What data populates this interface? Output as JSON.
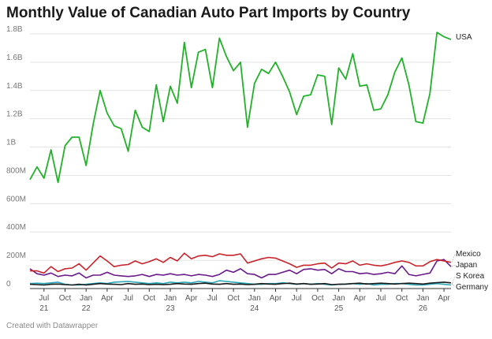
{
  "page": {
    "title": "Monthly Value of Canadian Auto Part Imports by Country",
    "footer": "Created with Datawrapper"
  },
  "chart_data": {
    "type": "line",
    "title": "Monthly Value of Canadian Auto Part Imports by Country",
    "xlabel": "",
    "ylabel": "",
    "ylim": [
      0,
      1800000000
    ],
    "grid": true,
    "legend": "direct labels at line ends (right)",
    "y_ticks": [
      {
        "value": 0,
        "label": "0"
      },
      {
        "value": 200000000,
        "label": "200M"
      },
      {
        "value": 400000000,
        "label": "400M"
      },
      {
        "value": 600000000,
        "label": "600M"
      },
      {
        "value": 800000000,
        "label": "800M"
      },
      {
        "value": 1000000000,
        "label": "1B"
      },
      {
        "value": 1200000000,
        "label": "1.2B"
      },
      {
        "value": 1400000000,
        "label": "1.4B"
      },
      {
        "value": 1600000000,
        "label": "1.6B"
      },
      {
        "value": 1800000000,
        "label": "1.8B"
      }
    ],
    "x": [
      "2021-05",
      "2021-06",
      "2021-07",
      "2021-08",
      "2021-09",
      "2021-10",
      "2021-11",
      "2021-12",
      "2022-01",
      "2022-02",
      "2022-03",
      "2022-04",
      "2022-05",
      "2022-06",
      "2022-07",
      "2022-08",
      "2022-09",
      "2022-10",
      "2022-11",
      "2022-12",
      "2023-01",
      "2023-02",
      "2023-03",
      "2023-04",
      "2023-05",
      "2023-06",
      "2023-07",
      "2023-08",
      "2023-09",
      "2023-10",
      "2023-11",
      "2023-12",
      "2024-01",
      "2024-02",
      "2024-03",
      "2024-04",
      "2024-05",
      "2024-06",
      "2024-07",
      "2024-08",
      "2024-09",
      "2024-10",
      "2024-11",
      "2024-12",
      "2025-01",
      "2025-02",
      "2025-03",
      "2025-04",
      "2025-05",
      "2025-06",
      "2025-07",
      "2025-08",
      "2025-09",
      "2025-10",
      "2025-11",
      "2025-12",
      "2026-01",
      "2026-02",
      "2026-03",
      "2026-04",
      "2026-05"
    ],
    "x_ticks": [
      {
        "x": "2021-07",
        "label": "Jul",
        "year": "21"
      },
      {
        "x": "2021-10",
        "label": "Oct",
        "year": ""
      },
      {
        "x": "2022-01",
        "label": "Jan",
        "year": "22"
      },
      {
        "x": "2022-04",
        "label": "Apr",
        "year": ""
      },
      {
        "x": "2022-07",
        "label": "Jul",
        "year": ""
      },
      {
        "x": "2022-10",
        "label": "Oct",
        "year": ""
      },
      {
        "x": "2023-01",
        "label": "Jan",
        "year": "23"
      },
      {
        "x": "2023-04",
        "label": "Apr",
        "year": ""
      },
      {
        "x": "2023-07",
        "label": "Jul",
        "year": ""
      },
      {
        "x": "2023-10",
        "label": "Oct",
        "year": ""
      },
      {
        "x": "2024-01",
        "label": "Jan",
        "year": "24"
      },
      {
        "x": "2024-04",
        "label": "Apr",
        "year": ""
      },
      {
        "x": "2024-07",
        "label": "Jul",
        "year": ""
      },
      {
        "x": "2024-10",
        "label": "Oct",
        "year": ""
      },
      {
        "x": "2025-01",
        "label": "Jan",
        "year": "25"
      },
      {
        "x": "2025-04",
        "label": "Apr",
        "year": ""
      },
      {
        "x": "2025-07",
        "label": "Jul",
        "year": ""
      },
      {
        "x": "2025-10",
        "label": "Oct",
        "year": ""
      },
      {
        "x": "2026-01",
        "label": "Jan",
        "year": "26"
      },
      {
        "x": "2026-04",
        "label": "Apr",
        "year": ""
      }
    ],
    "series": [
      {
        "name": "USA",
        "color": "#22b22a",
        "values": [
          770000000,
          860000000,
          780000000,
          980000000,
          750000000,
          1010000000,
          1070000000,
          1070000000,
          870000000,
          1160000000,
          1400000000,
          1240000000,
          1150000000,
          1130000000,
          970000000,
          1260000000,
          1140000000,
          1110000000,
          1440000000,
          1180000000,
          1430000000,
          1310000000,
          1740000000,
          1420000000,
          1670000000,
          1690000000,
          1420000000,
          1770000000,
          1640000000,
          1540000000,
          1600000000,
          1140000000,
          1450000000,
          1550000000,
          1520000000,
          1600000000,
          1500000000,
          1390000000,
          1230000000,
          1360000000,
          1370000000,
          1510000000,
          1500000000,
          1160000000,
          1560000000,
          1480000000,
          1660000000,
          1430000000,
          1440000000,
          1260000000,
          1270000000,
          1370000000,
          1530000000,
          1630000000,
          1440000000,
          1180000000,
          1170000000,
          1380000000,
          1810000000,
          1780000000,
          1760000000
        ]
      },
      {
        "name": "Mexico",
        "color": "#c9232b",
        "values": [
          125000000,
          125000000,
          110000000,
          155000000,
          120000000,
          140000000,
          145000000,
          175000000,
          130000000,
          180000000,
          230000000,
          195000000,
          155000000,
          165000000,
          170000000,
          195000000,
          175000000,
          190000000,
          210000000,
          185000000,
          220000000,
          195000000,
          250000000,
          210000000,
          230000000,
          235000000,
          225000000,
          245000000,
          235000000,
          235000000,
          245000000,
          180000000,
          195000000,
          210000000,
          220000000,
          215000000,
          195000000,
          175000000,
          150000000,
          165000000,
          165000000,
          175000000,
          180000000,
          145000000,
          180000000,
          175000000,
          195000000,
          165000000,
          175000000,
          165000000,
          160000000,
          170000000,
          185000000,
          195000000,
          185000000,
          160000000,
          160000000,
          190000000,
          205000000,
          195000000,
          185000000
        ]
      },
      {
        "name": "Japan",
        "color": "#6a1a8a",
        "values": [
          140000000,
          105000000,
          95000000,
          110000000,
          85000000,
          95000000,
          90000000,
          110000000,
          75000000,
          95000000,
          95000000,
          115000000,
          95000000,
          90000000,
          85000000,
          90000000,
          100000000,
          85000000,
          100000000,
          95000000,
          105000000,
          95000000,
          100000000,
          90000000,
          100000000,
          95000000,
          85000000,
          100000000,
          130000000,
          115000000,
          140000000,
          105000000,
          100000000,
          75000000,
          100000000,
          100000000,
          115000000,
          130000000,
          105000000,
          135000000,
          140000000,
          130000000,
          135000000,
          105000000,
          140000000,
          120000000,
          120000000,
          105000000,
          110000000,
          100000000,
          105000000,
          115000000,
          105000000,
          160000000,
          100000000,
          90000000,
          100000000,
          110000000,
          195000000,
          205000000,
          155000000
        ]
      },
      {
        "name": "S Korea",
        "color": "#2aa8b8",
        "values": [
          35000000,
          38000000,
          35000000,
          40000000,
          45000000,
          30000000,
          25000000,
          25000000,
          30000000,
          35000000,
          40000000,
          35000000,
          45000000,
          48000000,
          50000000,
          45000000,
          40000000,
          35000000,
          40000000,
          35000000,
          45000000,
          40000000,
          45000000,
          40000000,
          50000000,
          45000000,
          40000000,
          55000000,
          50000000,
          45000000,
          40000000,
          35000000,
          30000000,
          30000000,
          35000000,
          35000000,
          40000000,
          35000000,
          30000000,
          35000000,
          30000000,
          35000000,
          30000000,
          25000000,
          30000000,
          30000000,
          35000000,
          30000000,
          35000000,
          25000000,
          30000000,
          30000000,
          35000000,
          35000000,
          30000000,
          25000000,
          25000000,
          30000000,
          35000000,
          30000000,
          25000000
        ]
      },
      {
        "name": "Germany",
        "color": "#1a1a1a",
        "values": [
          30000000,
          28000000,
          25000000,
          30000000,
          32000000,
          28000000,
          25000000,
          30000000,
          25000000,
          30000000,
          35000000,
          32000000,
          30000000,
          28000000,
          35000000,
          30000000,
          32000000,
          28000000,
          30000000,
          28000000,
          30000000,
          35000000,
          32000000,
          30000000,
          35000000,
          38000000,
          32000000,
          30000000,
          35000000,
          30000000,
          32000000,
          28000000,
          30000000,
          35000000,
          32000000,
          30000000,
          35000000,
          38000000,
          32000000,
          35000000,
          30000000,
          32000000,
          35000000,
          28000000,
          30000000,
          32000000,
          35000000,
          38000000,
          32000000,
          35000000,
          38000000,
          35000000,
          32000000,
          35000000,
          38000000,
          35000000,
          32000000,
          38000000,
          42000000,
          45000000,
          40000000
        ]
      }
    ]
  }
}
